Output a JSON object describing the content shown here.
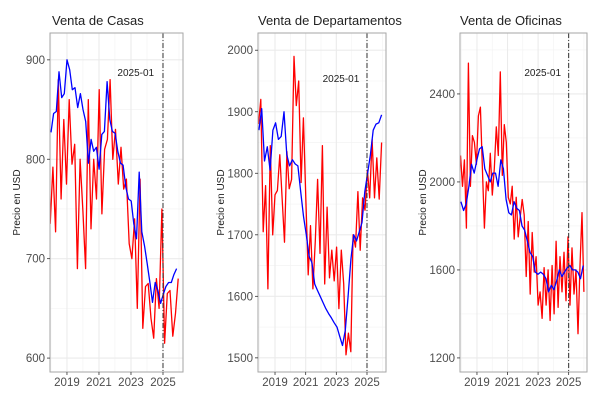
{
  "chart_data": [
    {
      "type": "line",
      "title": "Venta de Casas",
      "ylabel": "Precio en USD",
      "xlabel": "",
      "xlim": [
        2017.94,
        2026.25
      ],
      "ylim": [
        586,
        927
      ],
      "xticks": [
        2019,
        2021,
        2023,
        2025
      ],
      "xtick_labels": [
        "2019",
        "2021",
        "2023",
        "2025"
      ],
      "yticks": [
        600,
        700,
        800,
        900
      ],
      "ytick_labels": [
        "600",
        "700",
        "800",
        "900"
      ],
      "vline": 2025.0,
      "annotation": {
        "text": "2025-01",
        "x": 2023.3,
        "y": 888
      },
      "grid": true,
      "series": [
        {
          "name": "blue",
          "color": "#0000ff",
          "x_range": [
            2018.0,
            2025.85
          ],
          "values": [
            827,
            846,
            848,
            888,
            862,
            866,
            900,
            890,
            870,
            872,
            852,
            866,
            850,
            838,
            796,
            820,
            808,
            812,
            790,
            825,
            828,
            878,
            840,
            828,
            826,
            808,
            796,
            794,
            772,
            760,
            758,
            735,
            720,
            787,
            727,
            713,
            695,
            676,
            656,
            676,
            668,
            655,
            664,
            672,
            676,
            676,
            684,
            690
          ]
        },
        {
          "name": "red",
          "color": "#ff0000",
          "x_range": [
            2017.95,
            2025.95
          ],
          "values": [
            735,
            792,
            727,
            880,
            760,
            840,
            775,
            860,
            795,
            815,
            690,
            800,
            748,
            690,
            860,
            730,
            800,
            760,
            870,
            745,
            810,
            820,
            880,
            800,
            830,
            775,
            812,
            770,
            780,
            715,
            700,
            740,
            650,
            780,
            630,
            672,
            675,
            640,
            620,
            680,
            650,
            750,
            615,
            665,
            668,
            622,
            645,
            680
          ]
        }
      ]
    },
    {
      "type": "line",
      "title": "Venta de Departamentos",
      "ylabel": "Precio en USD",
      "xlabel": "",
      "xlim": [
        2017.89,
        2026.24
      ],
      "ylim": [
        1477,
        2028
      ],
      "xticks": [
        2019,
        2021,
        2023,
        2025
      ],
      "xtick_labels": [
        "2019",
        "2021",
        "2023",
        "2025"
      ],
      "yticks": [
        1500,
        1600,
        1700,
        1800,
        1900,
        2000
      ],
      "ytick_labels": [
        "1500",
        "1600",
        "1700",
        "1800",
        "1900",
        "2000"
      ],
      "vline": 2025.0,
      "annotation": {
        "text": "2025-01",
        "x": 2023.3,
        "y": 1955
      },
      "grid": true,
      "series": [
        {
          "name": "blue",
          "color": "#0000ff",
          "x_range": [
            2017.95,
            2025.95
          ],
          "values": [
            1870,
            1905,
            1820,
            1843,
            1805,
            1870,
            1882,
            1855,
            1860,
            1900,
            1830,
            1812,
            1822,
            1815,
            1812,
            1770,
            1730,
            1700,
            1665,
            1655,
            1620,
            1610,
            1600,
            1590,
            1580,
            1572,
            1565,
            1557,
            1550,
            1535,
            1520,
            1545,
            1600,
            1660,
            1700,
            1690,
            1705,
            1720,
            1770,
            1800,
            1830,
            1870,
            1880,
            1882,
            1895
          ]
        },
        {
          "name": "red",
          "color": "#ff0000",
          "x_range": [
            2017.92,
            2025.95
          ],
          "values": [
            1880,
            1920,
            1705,
            1780,
            1612,
            1845,
            1700,
            1765,
            1772,
            1830,
            1760,
            1688,
            1835,
            1775,
            1790,
            1990,
            1910,
            1950,
            1785,
            1890,
            1760,
            1635,
            1715,
            1612,
            1690,
            1790,
            1670,
            1845,
            1620,
            1745,
            1630,
            1675,
            1625,
            1680,
            1580,
            1675,
            1620,
            1505,
            1540,
            1510,
            1700,
            1680,
            1770,
            1675,
            1760,
            1740,
            1805,
            1760,
            1855,
            1760,
            1825,
            1758,
            1850
          ]
        }
      ]
    },
    {
      "type": "line",
      "title": "Venta de Oficinas",
      "ylabel": "Precio en USD",
      "xlabel": "",
      "xlim": [
        2017.89,
        2026.2
      ],
      "ylim": [
        1136,
        2677
      ],
      "xticks": [
        2019,
        2021,
        2023,
        2025
      ],
      "xtick_labels": [
        "2019",
        "2021",
        "2023",
        "2025"
      ],
      "yticks": [
        1200,
        1600,
        2000,
        2400
      ],
      "ytick_labels": [
        "1200",
        "1600",
        "2000",
        "2400"
      ],
      "vline": 2025.0,
      "annotation": {
        "text": "2025-01",
        "x": 2023.3,
        "y": 2500
      },
      "grid": true,
      "series": [
        {
          "name": "blue",
          "color": "#0000ff",
          "x_range": [
            2017.95,
            2025.95
          ],
          "values": [
            1910,
            1870,
            1900,
            1980,
            2080,
            2040,
            2100,
            2150,
            2160,
            2060,
            2030,
            2000,
            2040,
            2040,
            1980,
            2100,
            2060,
            1920,
            1860,
            1850,
            1910,
            1880,
            1870,
            1800,
            1780,
            1730,
            1680,
            1660,
            1590,
            1580,
            1590,
            1580,
            1560,
            1500,
            1530,
            1510,
            1550,
            1600,
            1570,
            1590,
            1610,
            1620,
            1600,
            1600,
            1590,
            1560,
            1620
          ]
        },
        {
          "name": "red",
          "color": "#ff0000",
          "x_range": [
            2017.92,
            2026.0
          ],
          "values": [
            2120,
            1980,
            2100,
            1790,
            2540,
            1980,
            2210,
            2180,
            2080,
            2300,
            2340,
            2060,
            1790,
            2000,
            1960,
            2130,
            1940,
            2060,
            2250,
            2120,
            2500,
            2030,
            2260,
            2180,
            1930,
            1900,
            1980,
            1740,
            1930,
            1750,
            1840,
            1920,
            1850,
            1570,
            1820,
            1490,
            1770,
            1590,
            1660,
            1440,
            1500,
            1380,
            1610,
            1440,
            1600,
            1370,
            1620,
            1400,
            1730,
            1430,
            1660,
            1500,
            1680,
            1460,
            1750,
            1440,
            1700,
            1490,
            1600,
            1310,
            1620,
            1860,
            1500
          ]
        }
      ]
    }
  ]
}
